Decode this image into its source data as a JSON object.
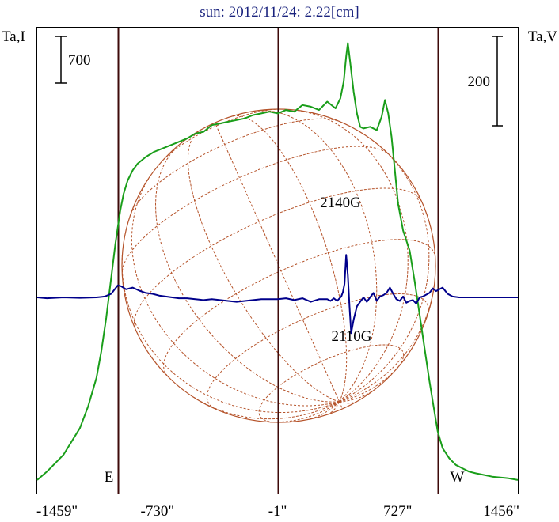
{
  "chart_data": {
    "type": "line",
    "title": "sun: 2012/11/24: 2.22[cm]",
    "left_axis_label": "Ta,I",
    "right_axis_label": "Ta,V",
    "x_unit": "arcsec",
    "xlim": [
      -1459,
      1456
    ],
    "x_tick_labels": [
      "-1459\"",
      "-730\"",
      "-1\"",
      "727\"",
      "1456\""
    ],
    "x_ticks": [
      -1459,
      -730,
      -1,
      727,
      1456
    ],
    "scale_bar_left": "700",
    "scale_bar_right": "200",
    "vertical_markers": [
      {
        "x": -970,
        "label": "E"
      },
      {
        "x": 0,
        "label": ""
      },
      {
        "x": 970,
        "label": "W"
      }
    ],
    "annotations": [
      "2140G",
      "2110G"
    ],
    "ta_i_range": [
      0,
      2660
    ],
    "ta_v_range": [
      -300,
      300
    ],
    "colors": {
      "ta_i": "#1a9e1a",
      "ta_v": "#00008b",
      "disk": "#b5532a",
      "markers": "#3d0a0a",
      "title": "#1a237e"
    },
    "series": [
      {
        "name": "",
        "axis": "left",
        "x": [
          -1459,
          -1400,
          -1300,
          -1200,
          -1150,
          -1100,
          -1070,
          -1040,
          -1010,
          -985,
          -970,
          -955,
          -935,
          -910,
          -880,
          -850,
          -800,
          -750,
          -700,
          -650,
          -600,
          -550,
          -500,
          -450,
          -400,
          -350,
          -300,
          -250,
          -200,
          -150,
          -100,
          -50,
          0,
          50,
          100,
          150,
          200,
          250,
          300,
          350,
          380,
          400,
          415,
          425,
          440,
          460,
          480,
          500,
          520,
          560,
          600,
          630,
          650,
          670,
          690,
          710,
          730,
          760,
          800,
          830,
          860,
          890,
          920,
          950,
          970,
          1000,
          1040,
          1080,
          1120,
          1160,
          1200,
          1250,
          1300,
          1350,
          1400,
          1456
        ],
        "y": [
          10,
          60,
          160,
          320,
          450,
          620,
          780,
          980,
          1220,
          1420,
          1520,
          1620,
          1720,
          1800,
          1860,
          1900,
          1940,
          1970,
          1990,
          2010,
          2030,
          2050,
          2080,
          2090,
          2130,
          2140,
          2150,
          2160,
          2170,
          2190,
          2200,
          2210,
          2200,
          2220,
          2210,
          2250,
          2240,
          2220,
          2270,
          2230,
          2290,
          2390,
          2540,
          2620,
          2500,
          2330,
          2200,
          2120,
          2110,
          2120,
          2100,
          2180,
          2280,
          2200,
          2060,
          1860,
          1660,
          1500,
          1380,
          1200,
          1000,
          800,
          600,
          420,
          300,
          200,
          140,
          100,
          80,
          60,
          50,
          40,
          30,
          25,
          20,
          10
        ]
      },
      {
        "name": "",
        "axis": "right",
        "x": [
          -1459,
          -1400,
          -1300,
          -1200,
          -1100,
          -1050,
          -1010,
          -985,
          -970,
          -950,
          -920,
          -880,
          -840,
          -800,
          -760,
          -720,
          -680,
          -640,
          -600,
          -550,
          -500,
          -450,
          -400,
          -350,
          -300,
          -250,
          -200,
          -150,
          -100,
          -50,
          0,
          50,
          100,
          150,
          200,
          250,
          300,
          320,
          340,
          360,
          375,
          385,
          395,
          405,
          415,
          425,
          435,
          445,
          460,
          480,
          500,
          520,
          540,
          560,
          580,
          600,
          620,
          640,
          660,
          680,
          700,
          720,
          740,
          760,
          780,
          800,
          820,
          840,
          860,
          880,
          900,
          920,
          940,
          960,
          980,
          1000,
          1030,
          1060,
          1100,
          1200,
          1300,
          1400,
          1456
        ],
        "y": [
          0,
          -2,
          0,
          -1,
          0,
          2,
          8,
          20,
          27,
          25,
          18,
          22,
          15,
          10,
          8,
          4,
          2,
          0,
          -2,
          -2,
          -4,
          -6,
          -4,
          -6,
          -8,
          -10,
          -8,
          -6,
          -4,
          -4,
          -4,
          -2,
          -6,
          -2,
          -10,
          -4,
          -4,
          -8,
          -2,
          -8,
          -2,
          2,
          12,
          30,
          95,
          50,
          -20,
          -80,
          -50,
          -20,
          -10,
          0,
          -10,
          0,
          10,
          -8,
          2,
          5,
          10,
          22,
          8,
          -4,
          -8,
          2,
          -12,
          -8,
          -6,
          -14,
          0,
          2,
          6,
          10,
          20,
          14,
          18,
          22,
          8,
          2,
          0,
          0,
          0,
          0,
          0
        ]
      }
    ]
  }
}
